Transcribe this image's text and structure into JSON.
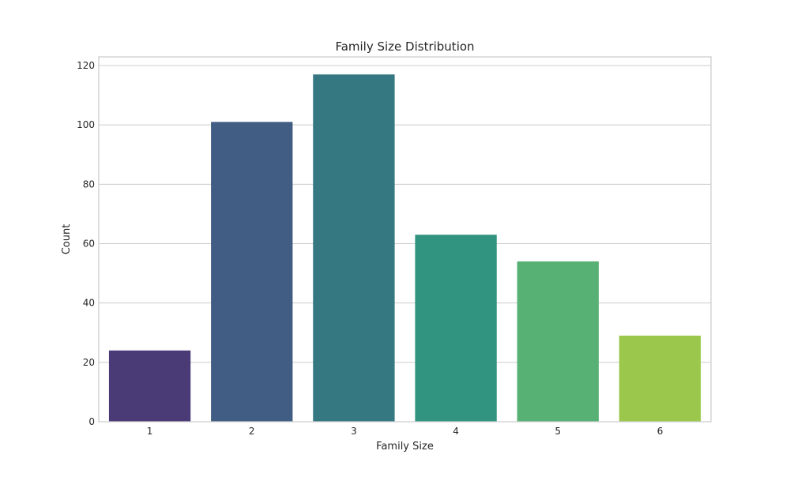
{
  "chart_data": {
    "type": "bar",
    "title": "Family Size Distribution",
    "xlabel": "Family Size",
    "ylabel": "Count",
    "categories": [
      "1",
      "2",
      "3",
      "4",
      "5",
      "6"
    ],
    "values": [
      24,
      101,
      117,
      63,
      54,
      29
    ],
    "colors": [
      "#4a3a76",
      "#415d83",
      "#357882",
      "#319480",
      "#58b174",
      "#9bc74c"
    ],
    "ylim": [
      0,
      120
    ],
    "yticks": [
      0,
      20,
      40,
      60,
      80,
      100,
      120
    ],
    "grid": "horizontal",
    "legend": "none",
    "frame_color": "#cccccc",
    "grid_color": "#cccccc"
  }
}
